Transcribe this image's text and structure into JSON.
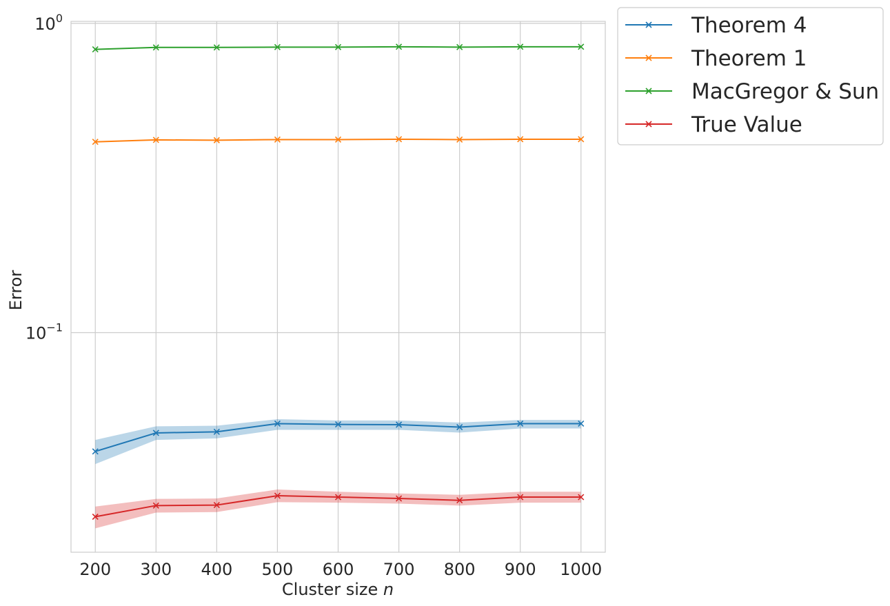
{
  "chart_data": {
    "type": "line",
    "xlabel_text": "Cluster size ",
    "xlabel_var": "n",
    "ylabel": "Error",
    "y_scale": "log",
    "x": [
      200,
      300,
      400,
      500,
      600,
      700,
      800,
      900,
      1000
    ],
    "x_ticks": [
      "200",
      "300",
      "400",
      "500",
      "600",
      "700",
      "800",
      "900",
      "1000"
    ],
    "y_ticks": [
      {
        "value": 1.0,
        "base": "10",
        "exp": "0"
      },
      {
        "value": 0.1,
        "base": "10",
        "exp": "−1"
      }
    ],
    "xlim": [
      160,
      1040
    ],
    "ylim": [
      0.0195,
      1.015
    ],
    "grid": true,
    "legend_position": "outside-top-right",
    "series": [
      {
        "name": "Theorem 4",
        "color": "#1f77b4",
        "values": [
          0.0413,
          0.0474,
          0.0478,
          0.0508,
          0.0505,
          0.0504,
          0.0495,
          0.0508,
          0.0508
        ],
        "band_low": [
          0.0376,
          0.045,
          0.0455,
          0.0485,
          0.0485,
          0.0485,
          0.0475,
          0.049,
          0.049
        ],
        "band_high": [
          0.045,
          0.0498,
          0.05,
          0.0525,
          0.052,
          0.052,
          0.0512,
          0.0522,
          0.0522
        ]
      },
      {
        "name": "Theorem 1",
        "color": "#ff7f0e",
        "values": [
          0.414,
          0.42,
          0.419,
          0.421,
          0.421,
          0.422,
          0.421,
          0.422,
          0.422
        ]
      },
      {
        "name": "MacGregor & Sun",
        "color": "#2ca02c",
        "values": [
          0.824,
          0.836,
          0.836,
          0.838,
          0.838,
          0.84,
          0.838,
          0.84,
          0.84
        ]
      },
      {
        "name": "True Value",
        "color": "#d62728",
        "values": [
          0.0254,
          0.0276,
          0.0277,
          0.0297,
          0.0294,
          0.0291,
          0.0287,
          0.0294,
          0.0294
        ],
        "band_low": [
          0.0233,
          0.0262,
          0.0263,
          0.0283,
          0.0282,
          0.028,
          0.0276,
          0.0282,
          0.0282
        ],
        "band_high": [
          0.0274,
          0.029,
          0.0291,
          0.0311,
          0.0306,
          0.0302,
          0.0299,
          0.0306,
          0.0306
        ]
      }
    ]
  }
}
